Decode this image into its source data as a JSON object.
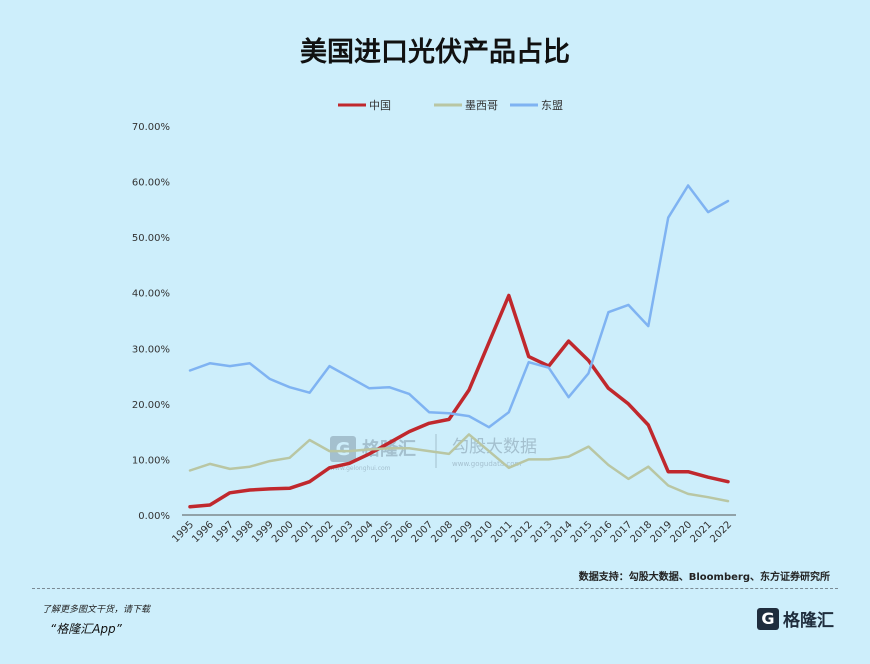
{
  "chart_data": {
    "type": "line",
    "title": "美国进口光伏产品占比",
    "x": [
      "1995",
      "1996",
      "1997",
      "1998",
      "1999",
      "2000",
      "2001",
      "2002",
      "2003",
      "2004",
      "2005",
      "2006",
      "2007",
      "2008",
      "2009",
      "2010",
      "2011",
      "2012",
      "2013",
      "2014",
      "2015",
      "2016",
      "2017",
      "2018",
      "2019",
      "2020",
      "2021",
      "2022"
    ],
    "y_ticks": [
      "0.00%",
      "10.00%",
      "20.00%",
      "30.00%",
      "40.00%",
      "50.00%",
      "60.00%",
      "70.00%"
    ],
    "ylim": [
      0,
      70
    ],
    "legend_position": "top-center",
    "grid": false,
    "series": [
      {
        "name": "中国",
        "color": "#c0282d",
        "values": [
          1.5,
          1.8,
          4.0,
          4.5,
          4.7,
          4.8,
          6.0,
          8.5,
          9.3,
          11.0,
          13.0,
          15.0,
          16.5,
          17.2,
          22.5,
          31.0,
          39.5,
          28.5,
          26.8,
          31.3,
          27.8,
          22.8,
          20.0,
          16.2,
          7.8,
          7.8,
          6.8,
          6.0
        ]
      },
      {
        "name": "墨西哥",
        "color": "#b9c6a3",
        "values": [
          8.0,
          9.2,
          8.3,
          8.7,
          9.7,
          10.3,
          13.5,
          11.5,
          11.5,
          11.8,
          12.0,
          12.0,
          11.5,
          11.0,
          14.5,
          11.5,
          8.5,
          10.0,
          10.0,
          10.5,
          12.3,
          9.0,
          6.5,
          8.7,
          5.3,
          3.8,
          3.2,
          2.5
        ]
      },
      {
        "name": "东盟",
        "color": "#7fb3f2",
        "values": [
          26.0,
          27.3,
          26.8,
          27.3,
          24.5,
          23.0,
          22.0,
          26.8,
          24.8,
          22.8,
          23.0,
          21.8,
          18.5,
          18.3,
          17.8,
          15.8,
          18.5,
          27.5,
          26.5,
          21.2,
          25.5,
          36.5,
          37.8,
          34.0,
          53.5,
          59.3,
          54.5,
          56.5
        ]
      }
    ]
  },
  "watermark": {
    "brand": "格隆汇",
    "domain": "www.gelonghui.com",
    "brand2": "勾股大数据",
    "domain2": "www.gogudata.com"
  },
  "source": "数据支持：勾股大数据、Bloomberg、东方证券研究所",
  "footer": {
    "line1": "了解更多图文干货，请下载",
    "line2": "“格隆汇App”"
  },
  "brand": {
    "logo_letter": "G",
    "name": "格隆汇"
  }
}
